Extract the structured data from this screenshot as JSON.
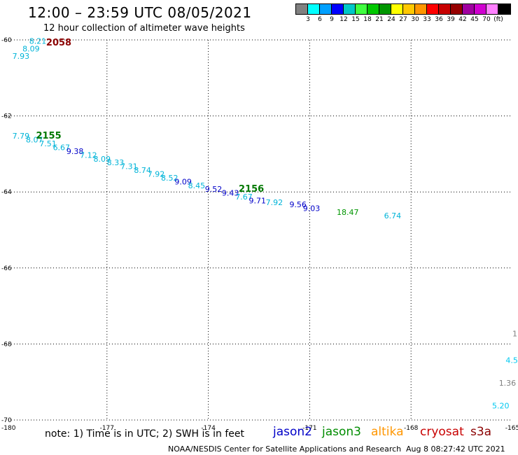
{
  "header": {
    "title": "12:00 – 23:59 UTC 08/05/2021",
    "subtitle": "12 hour collection of altimeter wave heights"
  },
  "legend": {
    "colors": [
      "#808080",
      "#00ffff",
      "#00a0ff",
      "#0000ff",
      "#00c8c8",
      "#40ff40",
      "#00c800",
      "#009600",
      "#ffff00",
      "#ffc800",
      "#ff9600",
      "#ff0000",
      "#c80000",
      "#960000",
      "#a000a0",
      "#d000d0",
      "#ff80ff",
      "#000000"
    ],
    "labels": [
      "3",
      "6",
      "9",
      "12",
      "15",
      "18",
      "21",
      "24",
      "27",
      "30",
      "33",
      "36",
      "39",
      "42",
      "45",
      "70",
      "(ft)"
    ]
  },
  "chart_data": {
    "type": "scatter",
    "xlim": [
      -180,
      -165
    ],
    "ylim": [
      -70,
      -60
    ],
    "x_ticks": [
      "-180",
      "-177",
      "-174",
      "-171",
      "-168",
      "-165"
    ],
    "y_ticks": [
      "-60",
      "-62",
      "-64",
      "-66",
      "-68",
      "-70"
    ],
    "grid": true,
    "points": [
      {
        "lon": -179.3,
        "lat": -60.1,
        "label": "8.21",
        "color": "#00b4d8"
      },
      {
        "lon": -179.5,
        "lat": -60.3,
        "label": "8.09",
        "color": "#00b4d8"
      },
      {
        "lon": -179.8,
        "lat": -60.5,
        "label": "7.93",
        "color": "#00b4d8"
      },
      {
        "lon": -179.8,
        "lat": -62.6,
        "label": "7.79",
        "color": "#00b4d8"
      },
      {
        "lon": -179.4,
        "lat": -62.7,
        "label": "8.07",
        "color": "#00b4d8"
      },
      {
        "lon": -179.0,
        "lat": -62.8,
        "label": "7.51",
        "color": "#00b4d8"
      },
      {
        "lon": -178.6,
        "lat": -62.9,
        "label": "6.67",
        "color": "#00b4d8"
      },
      {
        "lon": -178.2,
        "lat": -63.0,
        "label": "9.38",
        "color": "#0000c8"
      },
      {
        "lon": -177.8,
        "lat": -63.1,
        "label": "7.12",
        "color": "#00b4d8"
      },
      {
        "lon": -177.4,
        "lat": -63.2,
        "label": "8.09",
        "color": "#00b4d8"
      },
      {
        "lon": -177.0,
        "lat": -63.3,
        "label": "8.33",
        "color": "#00b4d8"
      },
      {
        "lon": -176.6,
        "lat": -63.4,
        "label": "7.31",
        "color": "#00b4d8"
      },
      {
        "lon": -176.2,
        "lat": -63.5,
        "label": "8.74",
        "color": "#00b4d8"
      },
      {
        "lon": -175.8,
        "lat": -63.6,
        "label": "7.92",
        "color": "#00b4d8"
      },
      {
        "lon": -175.4,
        "lat": -63.7,
        "label": "8.52",
        "color": "#00b4d8"
      },
      {
        "lon": -175.0,
        "lat": -63.8,
        "label": "9.09",
        "color": "#0000c8"
      },
      {
        "lon": -174.6,
        "lat": -63.9,
        "label": "8.45",
        "color": "#00b4d8"
      },
      {
        "lon": -174.1,
        "lat": -64.0,
        "label": "9.52",
        "color": "#0000c8"
      },
      {
        "lon": -173.6,
        "lat": -64.1,
        "label": "9.43",
        "color": "#0000c8"
      },
      {
        "lon": -173.2,
        "lat": -64.2,
        "label": "7.67",
        "color": "#00b4d8"
      },
      {
        "lon": -172.8,
        "lat": -64.3,
        "label": "9.71",
        "color": "#0000c8"
      },
      {
        "lon": -172.3,
        "lat": -64.35,
        "label": "7.92",
        "color": "#00b4d8"
      },
      {
        "lon": -171.6,
        "lat": -64.4,
        "label": "9.56",
        "color": "#0000c8"
      },
      {
        "lon": -171.2,
        "lat": -64.5,
        "label": "9.03",
        "color": "#0000c8"
      },
      {
        "lon": -170.2,
        "lat": -64.6,
        "label": "18.47",
        "color": "#009600"
      },
      {
        "lon": -168.8,
        "lat": -64.7,
        "label": "6.74",
        "color": "#00b4d8"
      },
      {
        "lon": -165.2,
        "lat": -68.5,
        "label": "4.5",
        "color": "#00c8f0"
      },
      {
        "lon": -165.4,
        "lat": -69.1,
        "label": "1.36",
        "color": "#808080"
      },
      {
        "lon": -165.6,
        "lat": -69.7,
        "label": "5.20",
        "color": "#00c8f0"
      },
      {
        "lon": -165.0,
        "lat": -67.8,
        "label": "1",
        "color": "#808080"
      }
    ],
    "time_labels": [
      {
        "lon": -178.8,
        "lat": -60.15,
        "label": "2058",
        "color": "#8b0000"
      },
      {
        "lon": -179.1,
        "lat": -62.6,
        "label": "2155",
        "color": "#007800"
      },
      {
        "lon": -173.1,
        "lat": -64.0,
        "label": "2156",
        "color": "#007800"
      }
    ]
  },
  "footer": {
    "note": "note:  1) Time is in UTC;  2) SWH is in feet",
    "satellites": [
      {
        "name": "jason2",
        "color": "#0000c8"
      },
      {
        "name": "jason3",
        "color": "#008c00"
      },
      {
        "name": "altika",
        "color": "#ff9600"
      },
      {
        "name": "cryosat",
        "color": "#c80000"
      },
      {
        "name": "s3a",
        "color": "#8b0000"
      }
    ],
    "credit": "NOAA/NESDIS Center for Satellite Applications and Research",
    "timestamp": "Aug  8 08:27:42 UTC 2021"
  }
}
